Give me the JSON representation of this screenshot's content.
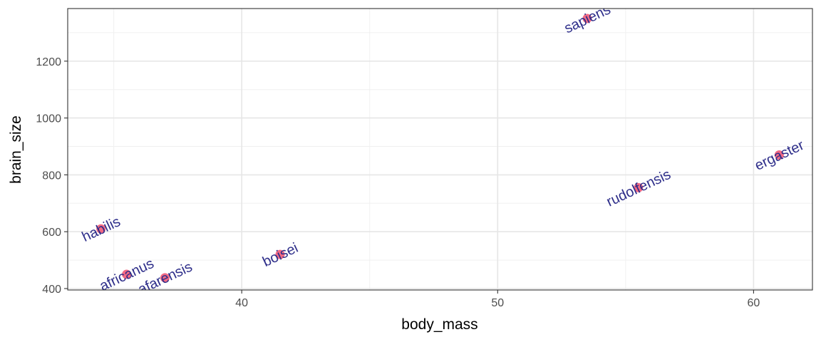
{
  "chart_data": {
    "type": "scatter",
    "xlabel": "body_mass",
    "ylabel": "brain_size",
    "xlim": [
      33.2,
      62.3
    ],
    "ylim": [
      395,
      1385
    ],
    "x_ticks": [
      40,
      50,
      60
    ],
    "y_ticks": [
      400,
      600,
      800,
      1000,
      1200
    ],
    "x_tick_labels": [
      "40",
      "50",
      "60"
    ],
    "y_tick_labels": [
      "400",
      "600",
      "800",
      "1000",
      "1200"
    ],
    "grid": true,
    "point_color": "#f0506e",
    "label_color": "#2e2e8a",
    "label_angle": 25,
    "points": [
      {
        "label": "habilis",
        "x": 34.5,
        "y": 610
      },
      {
        "label": "africanus",
        "x": 35.5,
        "y": 450
      },
      {
        "label": "afarensis",
        "x": 37.0,
        "y": 438
      },
      {
        "label": "boisei",
        "x": 41.5,
        "y": 520
      },
      {
        "label": "sapiens",
        "x": 53.5,
        "y": 1350
      },
      {
        "label": "rudolfensis",
        "x": 55.5,
        "y": 755
      },
      {
        "label": "ergaster",
        "x": 61.0,
        "y": 870
      }
    ]
  }
}
